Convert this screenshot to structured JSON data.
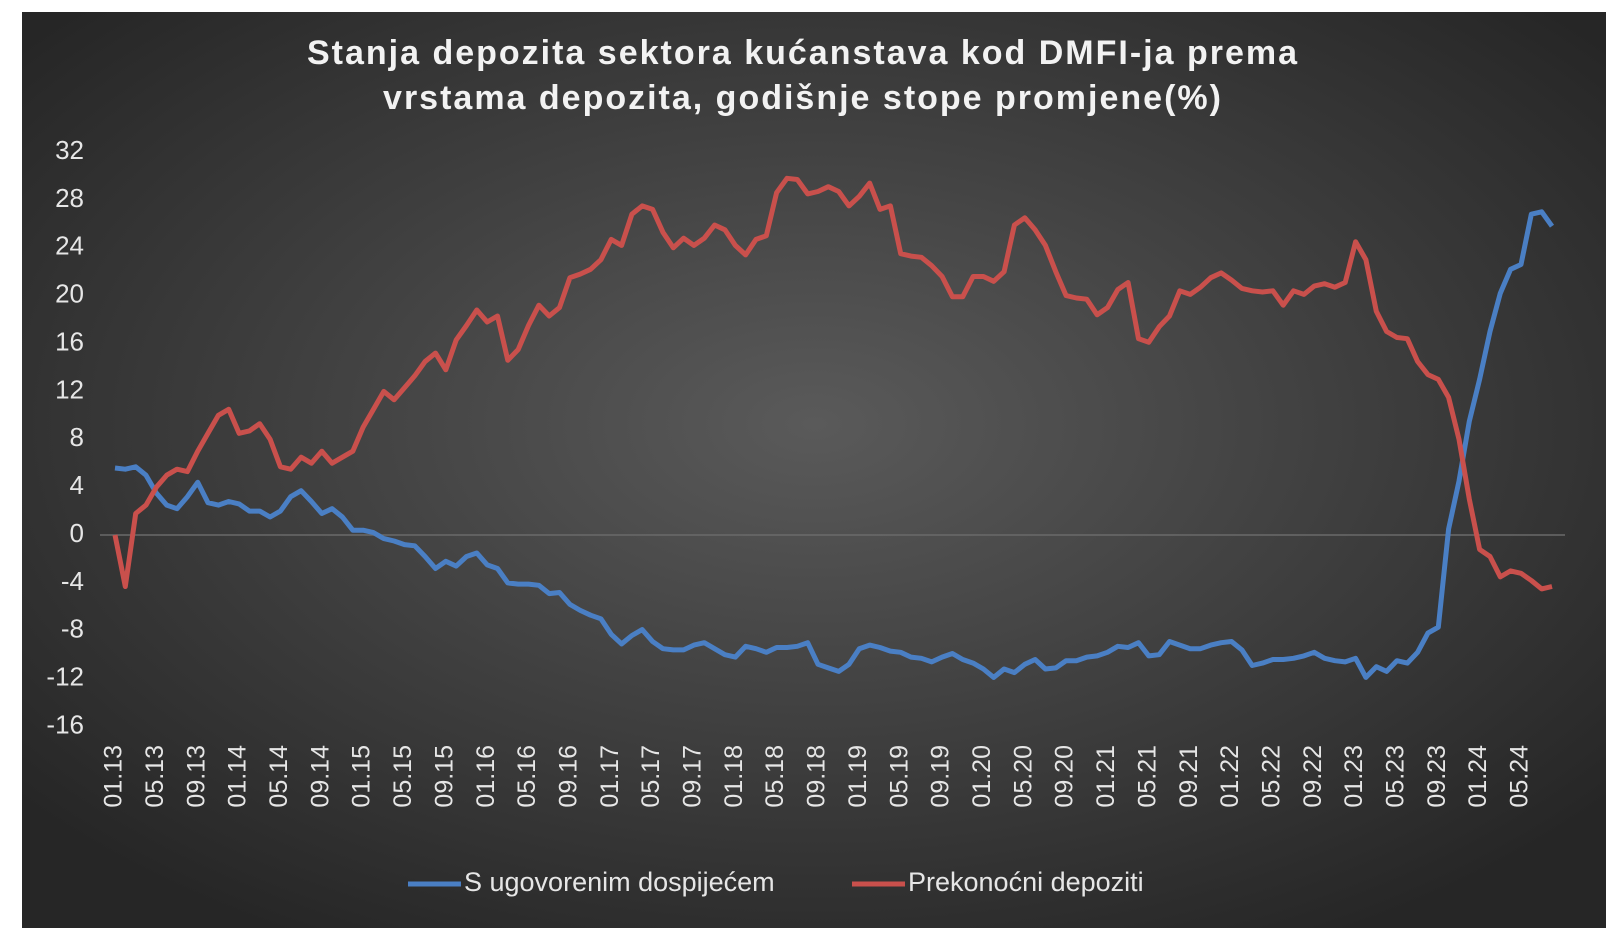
{
  "chart_data": {
    "type": "line",
    "title": [
      "Stanja depozita sektora kućanstava kod DMFI-ja prema",
      "vrstama depozita, godišnje stope promjene(%)"
    ],
    "categories": [
      "01.13",
      null,
      null,
      null,
      "05.13",
      null,
      null,
      null,
      "09.13",
      null,
      null,
      null,
      "01.14",
      null,
      null,
      null,
      "05.14",
      null,
      null,
      null,
      "09.14",
      null,
      null,
      null,
      "01.15",
      null,
      null,
      null,
      "05.15",
      null,
      null,
      null,
      "09.15",
      null,
      null,
      null,
      "01.16",
      null,
      null,
      null,
      "05.16",
      null,
      null,
      null,
      "09.16",
      null,
      null,
      null,
      "01.17",
      null,
      null,
      null,
      "05.17",
      null,
      null,
      null,
      "09.17",
      null,
      null,
      null,
      "01.18",
      null,
      null,
      null,
      "05.18",
      null,
      null,
      null,
      "09.18",
      null,
      null,
      null,
      "01.19",
      null,
      null,
      null,
      "05.19",
      null,
      null,
      null,
      "09.19",
      null,
      null,
      null,
      "01.20",
      null,
      null,
      null,
      "05.20",
      null,
      null,
      null,
      "09.20",
      null,
      null,
      null,
      "01.21",
      null,
      null,
      null,
      "05.21",
      null,
      null,
      null,
      "09.21",
      null,
      null,
      null,
      "01.22",
      null,
      null,
      null,
      "05.22",
      null,
      null,
      null,
      "09.22",
      null,
      null,
      null,
      "01.23",
      null,
      null,
      null,
      "05.23",
      null,
      null,
      null,
      "09.23",
      null,
      null,
      null,
      "01.24",
      null,
      null,
      null,
      "05.24",
      null,
      null,
      null
    ],
    "series": [
      {
        "name": "S ugovorenim dospijećem",
        "color": "#4a7fc4",
        "values": [
          5.6,
          5.5,
          5.7,
          5,
          3.5,
          2.5,
          2.2,
          3.2,
          4.4,
          2.7,
          2.5,
          2.8,
          2.6,
          2,
          2,
          1.5,
          2,
          3.2,
          3.7,
          2.8,
          1.8,
          2.2,
          1.5,
          0.4,
          0.4,
          0.2,
          -0.3,
          -0.5,
          -0.8,
          -0.9,
          -1.8,
          -2.8,
          -2.2,
          -2.6,
          -1.8,
          -1.5,
          -2.5,
          -2.8,
          -4,
          -4.1,
          -4.1,
          -4.2,
          -4.9,
          -4.8,
          -5.8,
          -6.3,
          -6.7,
          -7,
          -8.3,
          -9.1,
          -8.4,
          -7.9,
          -8.9,
          -9.5,
          -9.6,
          -9.6,
          -9.2,
          -9,
          -9.5,
          -10,
          -10.2,
          -9.3,
          -9.5,
          -9.8,
          -9.4,
          -9.4,
          -9.3,
          -9,
          -10.8,
          -11.1,
          -11.4,
          -10.8,
          -9.5,
          -9.2,
          -9.4,
          -9.7,
          -9.8,
          -10.2,
          -10.3,
          -10.6,
          -10.2,
          -9.9,
          -10.4,
          -10.7,
          -11.2,
          -11.9,
          -11.2,
          -11.5,
          -10.8,
          -10.4,
          -11.2,
          -11.1,
          -10.5,
          -10.5,
          -10.2,
          -10.1,
          -9.8,
          -9.3,
          -9.4,
          -9,
          -10.1,
          -10,
          -8.9,
          -9.2,
          -9.5,
          -9.5,
          -9.2,
          -9,
          -8.9,
          -9.6,
          -10.9,
          -10.7,
          -10.4,
          -10.4,
          -10.3,
          -10.1,
          -9.8,
          -10.3,
          -10.5,
          -10.6,
          -10.3,
          -11.9,
          -11,
          -11.4,
          -10.5,
          -10.7,
          -9.8,
          -8.2,
          -7.7,
          0.5,
          4.5,
          9.5,
          13,
          17,
          20.2,
          22.2,
          22.6,
          26.8,
          27,
          25.8
        ]
      },
      {
        "name": "Prekonoćni depoziti",
        "color": "#c9504c",
        "values": [
          0,
          -4.3,
          1.8,
          2.5,
          4,
          5,
          5.5,
          5.3,
          7,
          8.5,
          10,
          10.5,
          8.5,
          8.7,
          9.3,
          8,
          5.7,
          5.5,
          6.5,
          6,
          7,
          6,
          6.5,
          7,
          9,
          10.5,
          12,
          11.3,
          12.3,
          13.3,
          14.5,
          15.2,
          13.8,
          16.3,
          17.5,
          18.8,
          17.8,
          18.3,
          14.6,
          15.5,
          17.5,
          19.2,
          18.3,
          19,
          21.5,
          21.8,
          22.2,
          23,
          24.7,
          24.2,
          26.8,
          27.5,
          27.2,
          25.3,
          24,
          24.8,
          24.2,
          24.8,
          25.9,
          25.5,
          24.2,
          23.4,
          24.7,
          25,
          28.6,
          29.8,
          29.7,
          28.5,
          28.7,
          29.1,
          28.7,
          27.5,
          28.3,
          29.4,
          27.2,
          27.5,
          23.5,
          23.3,
          23.2,
          22.5,
          21.6,
          19.9,
          19.9,
          21.6,
          21.6,
          21.2,
          22,
          25.9,
          26.5,
          25.5,
          24.2,
          22,
          20,
          19.8,
          19.7,
          18.4,
          19,
          20.5,
          21.1,
          16.4,
          16.1,
          17.4,
          18.3,
          20.4,
          20.1,
          20.7,
          21.5,
          21.9,
          21.3,
          20.6,
          20.4,
          20.3,
          20.4,
          19.2,
          20.4,
          20.1,
          20.8,
          21,
          20.7,
          21.1,
          24.5,
          23,
          18.7,
          17,
          16.5,
          16.4,
          14.5,
          13.4,
          13,
          11.5,
          8,
          3,
          -1.2,
          -1.8,
          -3.5,
          -3,
          -3.2,
          -3.8,
          -4.5,
          -4.3
        ]
      }
    ],
    "ylim": [
      -16,
      32
    ],
    "yticks": [
      -16,
      -12,
      -8,
      -4,
      0,
      4,
      8,
      12,
      16,
      20,
      24,
      28,
      32
    ],
    "grid": false
  }
}
